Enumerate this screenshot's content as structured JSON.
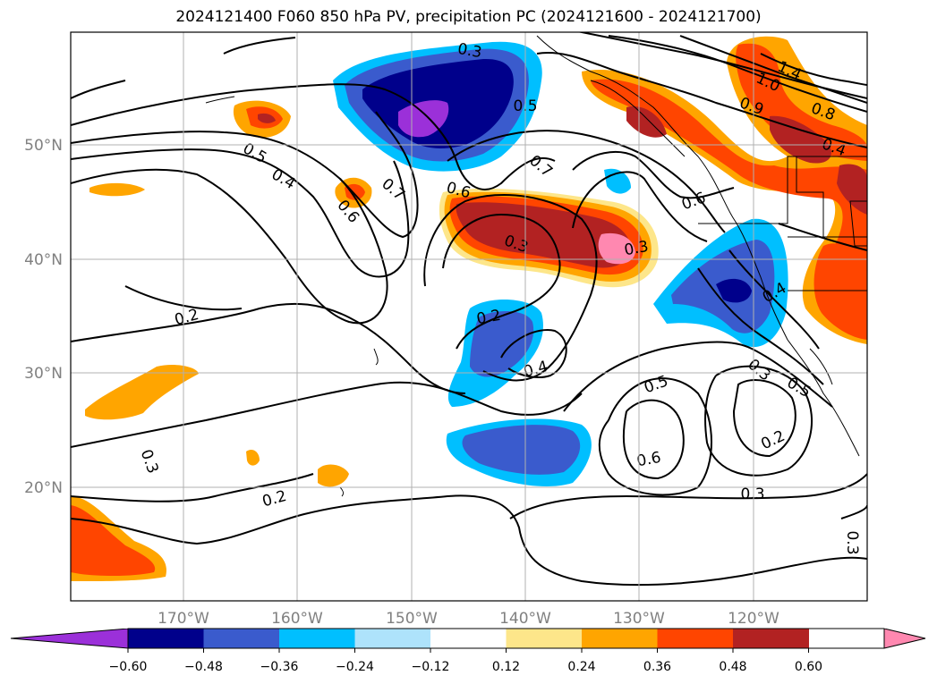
{
  "title": "2024121400 F060 850 hPa PV, precipitation PC (2024121600 - 2024121700)",
  "map": {
    "lon_ticks": [
      "170°W",
      "160°W",
      "150°W",
      "140°W",
      "130°W",
      "120°W"
    ],
    "lat_ticks": [
      "50°N",
      "40°N",
      "30°N",
      "20°N"
    ],
    "tick_color": "#808080",
    "grid_color": "#b0b0b0"
  },
  "contour_labels": [
    "0.3",
    "0.5",
    "0.5",
    "0.4",
    "0.6",
    "0.7",
    "0.7",
    "0.6",
    "0.3",
    "0.3",
    "1.4",
    "1.0",
    "0.9",
    "0.8",
    "0.4",
    "0.6",
    "0.4",
    "0.2",
    "0.2",
    "0.4",
    "0.5",
    "0.3",
    "0.5",
    "0.6",
    "0.2",
    "0.3",
    "0.3",
    "0.2",
    "0.3"
  ],
  "colorbar": {
    "colors": [
      "#9b30d9",
      "#00008b",
      "#3a5bcd",
      "#00bfff",
      "#aee3fb",
      "#ffffff",
      "#fde68a",
      "#ffa500",
      "#ff4500",
      "#b22222",
      "#ff88b0"
    ],
    "tick_labels": [
      "−0.60",
      "−0.48",
      "−0.36",
      "−0.24",
      "−0.12",
      "0.12",
      "0.24",
      "0.36",
      "0.48",
      "0.60"
    ]
  }
}
